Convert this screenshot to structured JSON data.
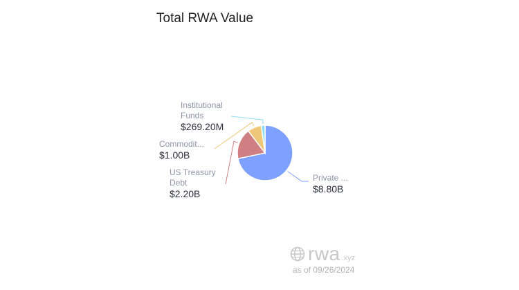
{
  "chart_data": {
    "type": "pie",
    "title": "Total RWA Value",
    "slices": [
      {
        "name_lines": [
          "Private ..."
        ],
        "display_value": "$8.80B",
        "value": 8.8,
        "color": "#7ea1ff",
        "label_side": "right"
      },
      {
        "name_lines": [
          "US Treasury",
          "Debt"
        ],
        "display_value": "$2.20B",
        "value": 2.2,
        "color": "#cf7f82",
        "label_side": "left"
      },
      {
        "name_lines": [
          "Commodit..."
        ],
        "display_value": "$1.00B",
        "value": 1.0,
        "color": "#eec779",
        "label_side": "left"
      },
      {
        "name_lines": [
          "Institutional",
          "Funds"
        ],
        "display_value": "$269.20M",
        "value": 0.2692,
        "color": "#8fdcf0",
        "label_side": "left"
      }
    ]
  },
  "watermark": {
    "brand": "rwa",
    "suffix": ".xyz",
    "icon": "globe-icon"
  },
  "as_of": "as of 09/26/2024"
}
